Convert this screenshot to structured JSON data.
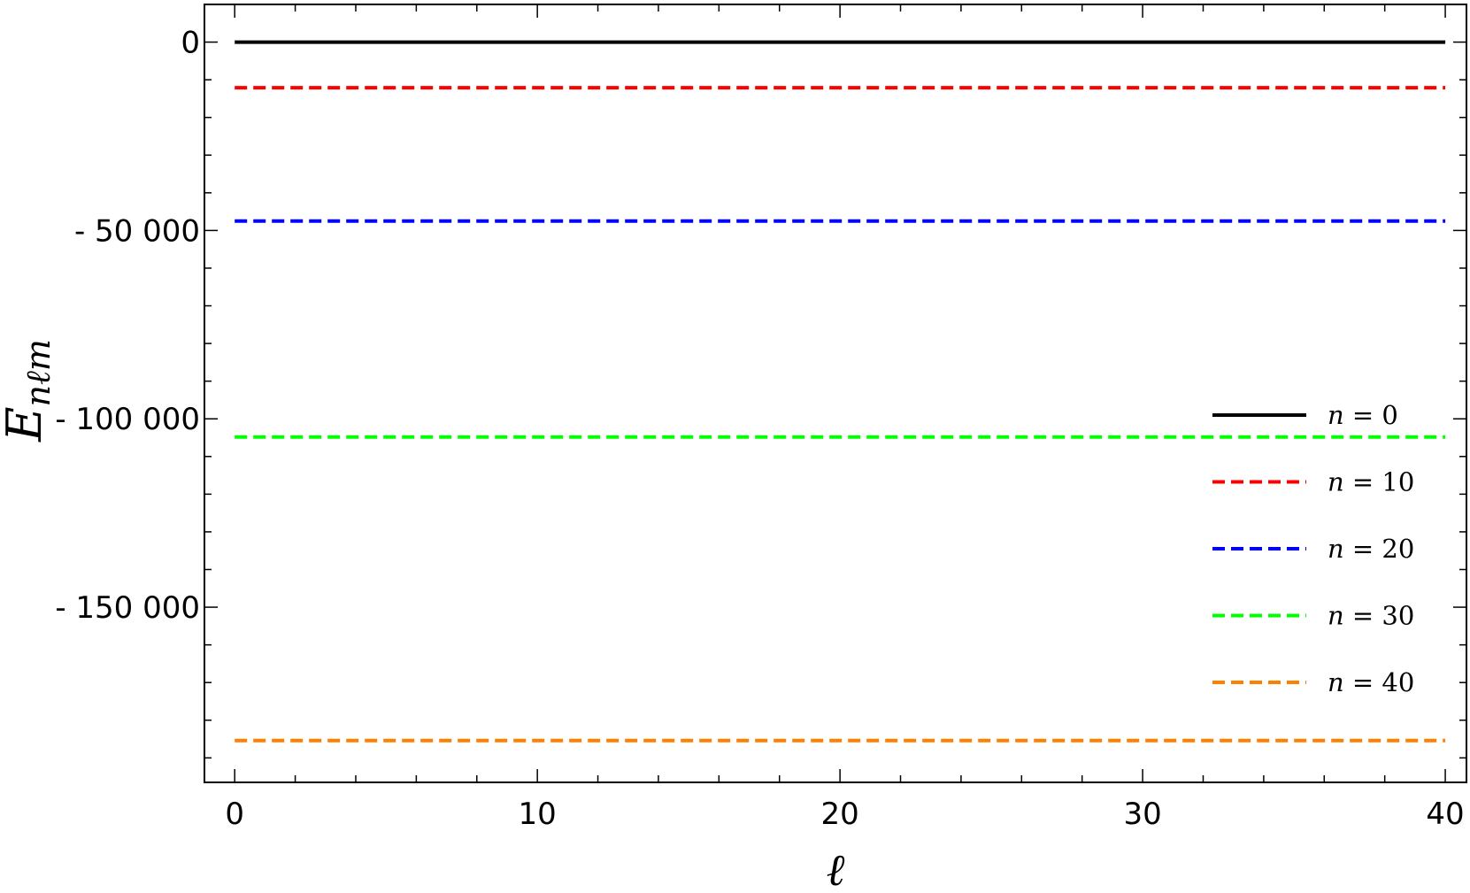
{
  "chart_data": {
    "type": "line",
    "xlabel": "ℓ",
    "ylabel": {
      "main": "E",
      "sub": "nℓm"
    },
    "xlim": [
      -1,
      40.7
    ],
    "ylim": [
      -196500,
      10000
    ],
    "grid": false,
    "xticks": [
      {
        "value": 0,
        "label": "0"
      },
      {
        "value": 10,
        "label": "10"
      },
      {
        "value": 20,
        "label": "20"
      },
      {
        "value": 30,
        "label": "30"
      },
      {
        "value": 40,
        "label": "40"
      }
    ],
    "yticks": [
      {
        "value": 0,
        "label": "0"
      },
      {
        "value": -50000,
        "label": "- 50 000"
      },
      {
        "value": -100000,
        "label": "- 100 000"
      },
      {
        "value": -150000,
        "label": "- 150 000"
      }
    ],
    "x_minor_step": 2,
    "y_minor_step": 10000,
    "legend_position": "right",
    "series": [
      {
        "name": "n = 0",
        "var": "n",
        "num": "0",
        "color": "#000000",
        "dashed": false,
        "x": [
          0,
          40
        ],
        "values": [
          0,
          0
        ]
      },
      {
        "name": "n = 10",
        "var": "n",
        "num": "10",
        "color": "#ff0000",
        "dashed": true,
        "x": [
          0,
          40
        ],
        "values": [
          -12100,
          -12100
        ]
      },
      {
        "name": "n = 20",
        "var": "n",
        "num": "20",
        "color": "#0000ff",
        "dashed": true,
        "x": [
          0,
          40
        ],
        "values": [
          -47500,
          -47500
        ]
      },
      {
        "name": "n = 30",
        "var": "n",
        "num": "30",
        "color": "#00ff00",
        "dashed": true,
        "x": [
          0,
          40
        ],
        "values": [
          -104800,
          -104800
        ]
      },
      {
        "name": "n = 40",
        "var": "n",
        "num": "40",
        "color": "#ff8000",
        "dashed": true,
        "x": [
          0,
          40
        ],
        "values": [
          -185400,
          -185400
        ]
      }
    ]
  }
}
